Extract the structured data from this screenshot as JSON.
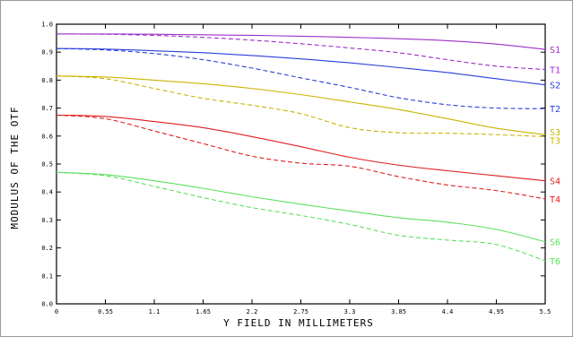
{
  "chart_data": {
    "type": "line",
    "xlabel": "Y FIELD IN MILLIMETERS",
    "ylabel": "MODULUS OF THE OTF",
    "xlim": [
      0,
      5.5
    ],
    "ylim": [
      0,
      1.0
    ],
    "x_ticks": [
      "0",
      "0.55",
      "1.1",
      "1.65",
      "2.2",
      "2.75",
      "3.3",
      "3.85",
      "4.4",
      "4.95",
      "5.5"
    ],
    "x_tick_values": [
      0,
      0.55,
      1.1,
      1.65,
      2.2,
      2.75,
      3.3,
      3.85,
      4.4,
      4.95,
      5.5
    ],
    "y_ticks": [
      "0.0",
      "0.1",
      "0.2",
      "0.3",
      "0.4",
      "0.5",
      "0.6",
      "0.7",
      "0.8",
      "0.9",
      "1.0"
    ],
    "y_tick_values": [
      0,
      0.1,
      0.2,
      0.3,
      0.4,
      0.5,
      0.6,
      0.7,
      0.8,
      0.9,
      1.0
    ],
    "grid": false,
    "x": [
      0,
      0.55,
      1.1,
      1.65,
      2.2,
      2.75,
      3.3,
      3.85,
      4.4,
      4.95,
      5.5
    ],
    "series": [
      {
        "name": "S1",
        "color": "#9b30c8",
        "dash": "solid",
        "values": [
          0.965,
          0.965,
          0.964,
          0.962,
          0.96,
          0.957,
          0.953,
          0.948,
          0.941,
          0.929,
          0.91
        ]
      },
      {
        "name": "T1",
        "color": "#9b30c8",
        "dash": "dashed",
        "values": [
          0.965,
          0.964,
          0.96,
          0.953,
          0.943,
          0.93,
          0.915,
          0.898,
          0.873,
          0.85,
          0.838
        ]
      },
      {
        "name": "S2",
        "color": "#2a3ed8",
        "dash": "solid",
        "values": [
          0.913,
          0.911,
          0.905,
          0.898,
          0.888,
          0.876,
          0.862,
          0.845,
          0.827,
          0.805,
          0.783
        ]
      },
      {
        "name": "T2",
        "color": "#2a3ed8",
        "dash": "dashed",
        "values": [
          0.913,
          0.908,
          0.895,
          0.873,
          0.843,
          0.808,
          0.774,
          0.737,
          0.712,
          0.7,
          0.698
        ]
      },
      {
        "name": "S3",
        "color": "#c8b400",
        "dash": "solid",
        "values": [
          0.815,
          0.811,
          0.8,
          0.787,
          0.77,
          0.748,
          0.722,
          0.695,
          0.662,
          0.628,
          0.605
        ]
      },
      {
        "name": "T3",
        "color": "#c8b400",
        "dash": "dashed",
        "values": [
          0.815,
          0.805,
          0.77,
          0.735,
          0.71,
          0.68,
          0.63,
          0.612,
          0.61,
          0.605,
          0.598
        ]
      },
      {
        "name": "S4",
        "color": "#e01e1e",
        "dash": "solid",
        "values": [
          0.675,
          0.67,
          0.652,
          0.63,
          0.598,
          0.562,
          0.524,
          0.496,
          0.476,
          0.458,
          0.44
        ]
      },
      {
        "name": "T4",
        "color": "#e01e1e",
        "dash": "dashed",
        "values": [
          0.675,
          0.662,
          0.618,
          0.573,
          0.528,
          0.503,
          0.492,
          0.455,
          0.425,
          0.405,
          0.375
        ]
      },
      {
        "name": "S6",
        "color": "#5ce05c",
        "dash": "solid",
        "values": [
          0.47,
          0.462,
          0.44,
          0.413,
          0.383,
          0.356,
          0.332,
          0.308,
          0.292,
          0.266,
          0.222
        ]
      },
      {
        "name": "T6",
        "color": "#5ce05c",
        "dash": "dashed",
        "values": [
          0.47,
          0.458,
          0.42,
          0.38,
          0.344,
          0.316,
          0.284,
          0.245,
          0.228,
          0.212,
          0.154
        ]
      }
    ]
  }
}
